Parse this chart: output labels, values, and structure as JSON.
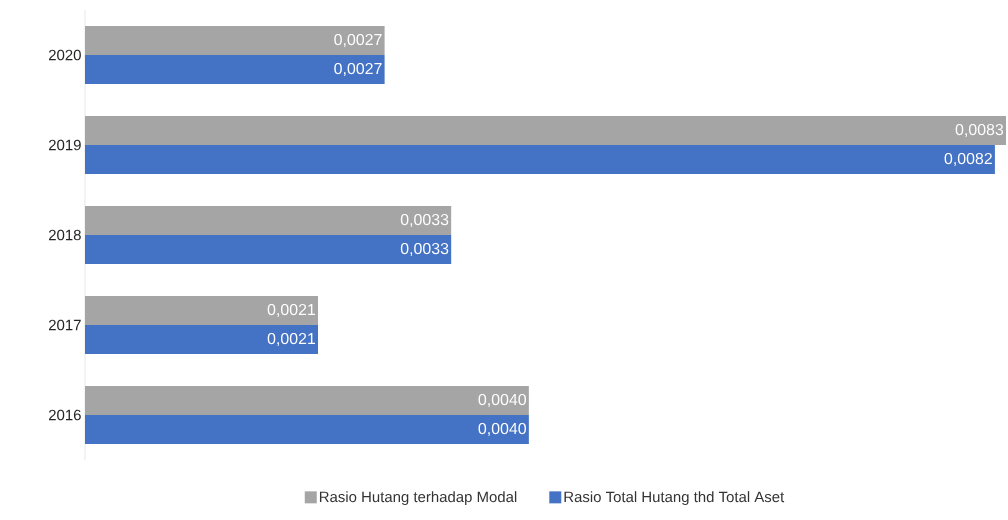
{
  "chart_data": {
    "type": "bar",
    "orientation": "horizontal",
    "categories": [
      "2020",
      "2019",
      "2018",
      "2017",
      "2016"
    ],
    "series": [
      {
        "name": "Rasio Hutang terhadap Modal",
        "color": "#a5a5a5",
        "values": [
          0.0027,
          0.0083,
          0.0033,
          0.0021,
          0.004
        ],
        "value_labels": [
          "0,0027",
          "0,0083",
          "0,0033",
          "0,0021",
          "0,0040"
        ]
      },
      {
        "name": "Rasio Total Hutang thd Total Aset",
        "color": "#4472c4",
        "values": [
          0.0027,
          0.0082,
          0.0033,
          0.0021,
          0.004
        ],
        "value_labels": [
          "0,0027",
          "0,0082",
          "0,0033",
          "0,0021",
          "0,0040"
        ]
      }
    ],
    "legend": "bottom",
    "tick_labels": "y"
  }
}
